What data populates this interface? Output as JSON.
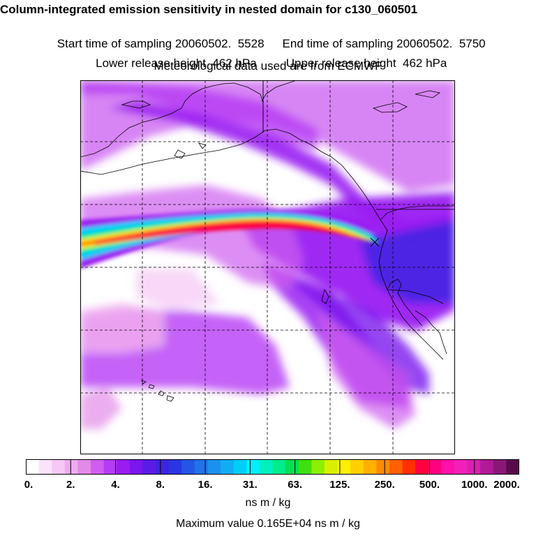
{
  "header": {
    "title": "Column-integrated emission sensitivity in nested domain for c130_060501",
    "start_sampling": "Start time of sampling 20060502.  5528",
    "end_sampling": "End time of sampling 20060502.  5750",
    "lower_release": "Lower release height  462 hPa",
    "upper_release": "Upper release height  462 hPa",
    "met_data": "Meteorological data used are from ECMWF"
  },
  "legend": {
    "ticks": [
      "0.",
      "2.",
      "4.",
      "8.",
      "16.",
      "31.",
      "63.",
      "125.",
      "250.",
      "500.",
      "1000.",
      "2000."
    ],
    "colors": [
      "#ffffff",
      "#fbe3fb",
      "#f5c8f5",
      "#eeaaf0",
      "#e28ae8",
      "#cf5ef0",
      "#b63bf5",
      "#9a1cf2",
      "#7a16ee",
      "#5a1be6",
      "#3d25e0",
      "#2b36e3",
      "#2456e6",
      "#1f72ea",
      "#1a90ef",
      "#12acf3",
      "#00cdf8",
      "#00f0ff",
      "#00f0c0",
      "#00ec8a",
      "#00e050",
      "#40e010",
      "#8cf000",
      "#d8f000",
      "#fff000",
      "#ffd000",
      "#ffb000",
      "#ff8a00",
      "#ff6000",
      "#ff3000",
      "#ff0040",
      "#ff0080",
      "#ff10a8",
      "#f020b8",
      "#d820b0",
      "#b01a98",
      "#8a1678",
      "#5a0a4a"
    ],
    "units": "ns m / kg",
    "maximum": "Maximum value  0.165E+04 ns m / kg"
  },
  "map": {
    "release_marker_icon": "x-mark-icon",
    "plume_colors": [
      "#9a1cf2",
      "#3d25e0",
      "#00cdf8",
      "#00ec8a",
      "#fff000",
      "#ff8a00",
      "#ff0040"
    ]
  }
}
